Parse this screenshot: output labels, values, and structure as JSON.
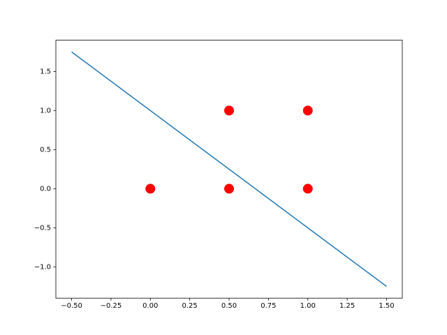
{
  "chart_data": {
    "type": "scatter",
    "line": {
      "x": [
        -0.5,
        1.5
      ],
      "values": [
        1.75,
        -1.25
      ],
      "color": "#1f77b4"
    },
    "points": {
      "x": [
        0,
        0.5,
        1,
        0.5,
        1
      ],
      "values": [
        0,
        0,
        0,
        1,
        1
      ],
      "color": "#ff0000"
    },
    "xlim": [
      -0.6,
      1.6
    ],
    "ylim": [
      -1.4,
      1.9
    ],
    "xticks": [
      {
        "value": -0.5,
        "label": "−0.50"
      },
      {
        "value": -0.25,
        "label": "−0.25"
      },
      {
        "value": 0,
        "label": "0.00"
      },
      {
        "value": 0.25,
        "label": "0.25"
      },
      {
        "value": 0.5,
        "label": "0.50"
      },
      {
        "value": 0.75,
        "label": "0.75"
      },
      {
        "value": 1,
        "label": "1.00"
      },
      {
        "value": 1.25,
        "label": "1.25"
      },
      {
        "value": 1.5,
        "label": "1.50"
      }
    ],
    "yticks": [
      {
        "value": -1,
        "label": "−1.0"
      },
      {
        "value": -0.5,
        "label": "−0.5"
      },
      {
        "value": 0,
        "label": "0.0"
      },
      {
        "value": 0.5,
        "label": "0.5"
      },
      {
        "value": 1,
        "label": "1.0"
      },
      {
        "value": 1.5,
        "label": "1.5"
      }
    ],
    "grid": false
  }
}
